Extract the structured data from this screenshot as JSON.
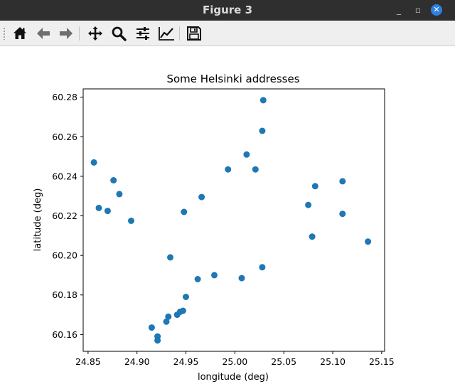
{
  "window": {
    "title": "Figure 3",
    "minimize_glyph": "_",
    "maximize_glyph": "▫",
    "close_glyph": "✕"
  },
  "toolbar": {
    "buttons": [
      {
        "icon": "home-icon"
      },
      {
        "icon": "back-arrow-icon"
      },
      {
        "icon": "forward-arrow-icon"
      },
      {
        "icon": "pan-icon"
      },
      {
        "icon": "zoom-icon"
      },
      {
        "icon": "configure-subplots-icon"
      },
      {
        "icon": "edit-axis-icon"
      },
      {
        "icon": "save-icon"
      }
    ]
  },
  "chart_data": {
    "type": "scatter",
    "title": "Some Helsinki addresses",
    "xlabel": "longitude (deg)",
    "ylabel": "latitude (deg)",
    "xlim": [
      24.845,
      25.153
    ],
    "ylim": [
      60.1515,
      60.2842
    ],
    "xticks": [
      "24.85",
      "24.90",
      "24.95",
      "25.00",
      "25.05",
      "25.10",
      "25.15"
    ],
    "yticks": [
      "60.16",
      "60.18",
      "60.20",
      "60.22",
      "60.24",
      "60.26",
      "60.28"
    ],
    "grid": false,
    "color": "#1f77b4",
    "points": [
      {
        "x": 24.856,
        "y": 60.247
      },
      {
        "x": 24.861,
        "y": 60.224
      },
      {
        "x": 24.87,
        "y": 60.2225
      },
      {
        "x": 24.876,
        "y": 60.238
      },
      {
        "x": 24.882,
        "y": 60.231
      },
      {
        "x": 24.894,
        "y": 60.2175
      },
      {
        "x": 24.915,
        "y": 60.1635
      },
      {
        "x": 24.921,
        "y": 60.159
      },
      {
        "x": 24.921,
        "y": 60.157
      },
      {
        "x": 24.93,
        "y": 60.1665
      },
      {
        "x": 24.932,
        "y": 60.169
      },
      {
        "x": 24.934,
        "y": 60.199
      },
      {
        "x": 24.941,
        "y": 60.17
      },
      {
        "x": 24.944,
        "y": 60.1715
      },
      {
        "x": 24.947,
        "y": 60.172
      },
      {
        "x": 24.948,
        "y": 60.222
      },
      {
        "x": 24.95,
        "y": 60.179
      },
      {
        "x": 24.962,
        "y": 60.188
      },
      {
        "x": 24.966,
        "y": 60.2295
      },
      {
        "x": 24.979,
        "y": 60.19
      },
      {
        "x": 24.993,
        "y": 60.2435
      },
      {
        "x": 25.007,
        "y": 60.1885
      },
      {
        "x": 25.012,
        "y": 60.251
      },
      {
        "x": 25.021,
        "y": 60.2435
      },
      {
        "x": 25.028,
        "y": 60.263
      },
      {
        "x": 25.028,
        "y": 60.194
      },
      {
        "x": 25.029,
        "y": 60.2785
      },
      {
        "x": 25.075,
        "y": 60.2255
      },
      {
        "x": 25.079,
        "y": 60.2095
      },
      {
        "x": 25.082,
        "y": 60.235
      },
      {
        "x": 25.11,
        "y": 60.2375
      },
      {
        "x": 25.11,
        "y": 60.221
      },
      {
        "x": 25.136,
        "y": 60.207
      }
    ]
  }
}
